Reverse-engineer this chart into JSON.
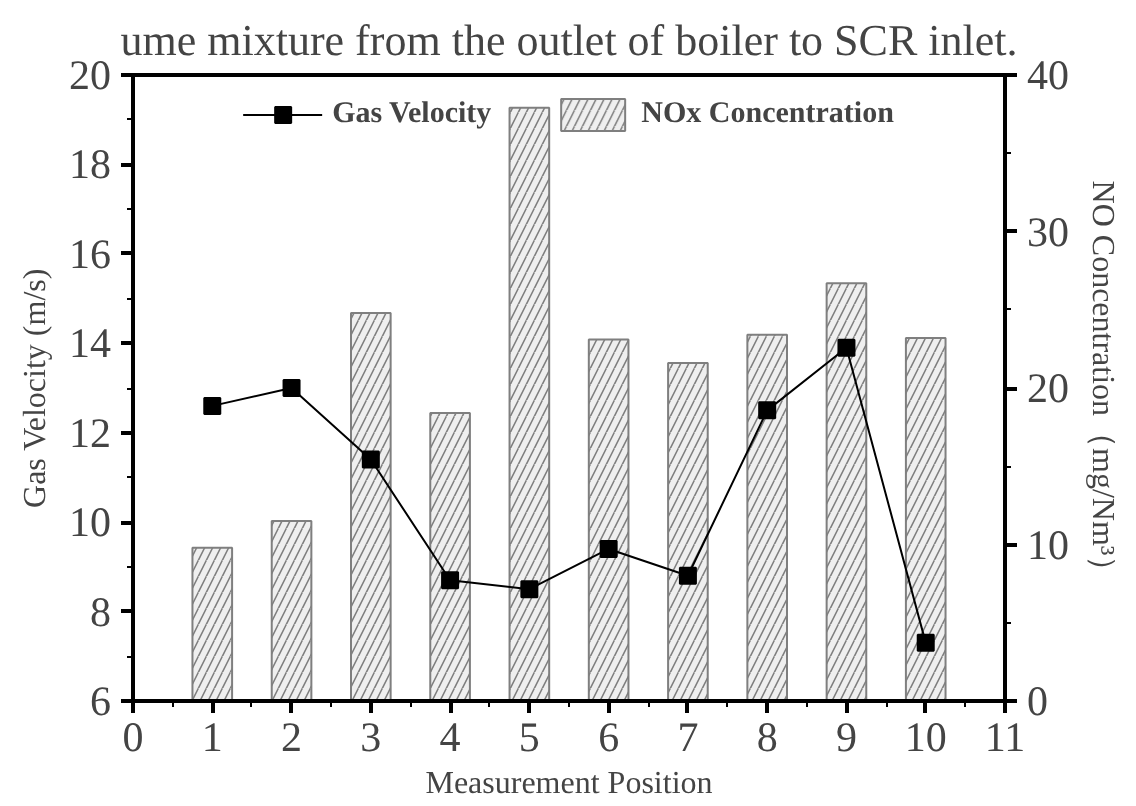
{
  "chart_data": {
    "type": "bar",
    "annotations": [
      "ume mixture from the outlet of boiler to SCR inlet."
    ],
    "xlabel": "Measurement Position",
    "ylabel": "Gas Velocity (m/s)",
    "y2label": "NO  Concentration（mg/Nm³）",
    "x": [
      1,
      2,
      3,
      4,
      5,
      6,
      7,
      8,
      9,
      10
    ],
    "xlim": [
      0,
      11
    ],
    "xticks": [
      0,
      1,
      2,
      3,
      4,
      5,
      6,
      7,
      8,
      9,
      10,
      11
    ],
    "ylim": [
      6,
      20
    ],
    "yticks": [
      6,
      8,
      10,
      12,
      14,
      16,
      18,
      20
    ],
    "y2lim": [
      0,
      40
    ],
    "y2ticks": [
      0,
      10,
      20,
      30,
      40
    ],
    "series": [
      {
        "name": "Gas Velocity",
        "type": "line",
        "color": "#000000",
        "marker": "square",
        "values": [
          12.6,
          13.0,
          11.4,
          8.7,
          8.5,
          9.4,
          8.8,
          12.5,
          13.9,
          7.3
        ]
      },
      {
        "name": "NOx Concentration",
        "axis": "y2",
        "color": "#7f7f7f",
        "values": [
          9.8,
          11.5,
          24.8,
          18.4,
          37.9,
          23.1,
          21.6,
          23.4,
          26.7,
          23.2
        ]
      }
    ],
    "legend": "top",
    "grid": false
  }
}
